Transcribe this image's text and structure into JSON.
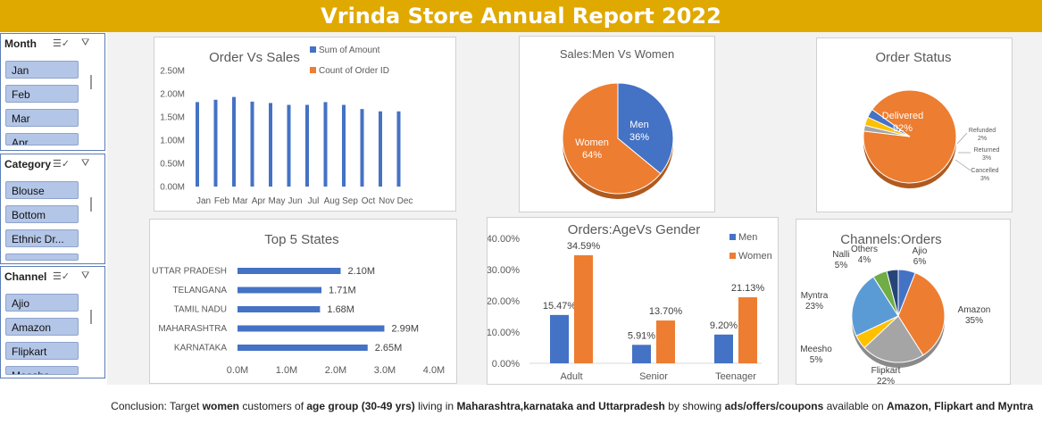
{
  "title": "Vrinda Store Annual Report 2022",
  "slicers": {
    "month": {
      "title": "Month",
      "items": [
        "Jan",
        "Feb",
        "Mar",
        "Apr"
      ]
    },
    "category": {
      "title": "Category",
      "items": [
        "Blouse",
        "Bottom",
        "Ethnic Dr..."
      ]
    },
    "channel": {
      "title": "Channel",
      "items": [
        "Ajio",
        "Amazon",
        "Flipkart",
        "Meesho"
      ]
    }
  },
  "colors": {
    "banner": "#E0A900",
    "blue": "#4472C4",
    "orange": "#ED7D31",
    "gray": "#A5A5A5",
    "yellow": "#FFC000",
    "lightblue": "#5B9BD5",
    "green": "#70AD47",
    "navy": "#264478"
  },
  "conclusion": {
    "p1": "Conclusion: Target ",
    "b1": "women",
    "p2": " customers of ",
    "b2": "age group (30-49 yrs)",
    "p3": " living in ",
    "b3": "Maharashtra,karnataka and Uttarpradesh",
    "p4": " by showing ",
    "b4": "ads/offers/coupons",
    "p5": " available on ",
    "b5": "Amazon, Flipkart and Myntra"
  },
  "chart_data": [
    {
      "id": "order-vs-sales",
      "type": "bar",
      "title": "Order Vs Sales",
      "categories": [
        "Jan",
        "Feb",
        "Mar",
        "Apr",
        "May",
        "Jun",
        "Jul",
        "Aug",
        "Sep",
        "Oct",
        "Nov",
        "Dec"
      ],
      "series": [
        {
          "name": "Sum of Amount",
          "values": [
            1.82,
            1.87,
            1.93,
            1.83,
            1.8,
            1.76,
            1.76,
            1.82,
            1.76,
            1.67,
            1.62,
            1.62
          ]
        },
        {
          "name": "Count of Order ID",
          "values": [
            0,
            0,
            0,
            0,
            0,
            0,
            0,
            0,
            0,
            0,
            0,
            0
          ]
        }
      ],
      "yticks": [
        "0.00M",
        "0.50M",
        "1.00M",
        "1.50M",
        "2.00M",
        "2.50M"
      ],
      "ylim": [
        0,
        2.5
      ],
      "legend": "top-right",
      "grid": false
    },
    {
      "id": "sales-men-women",
      "type": "pie",
      "title": "Sales:Men Vs Women",
      "labels": [
        "Men",
        "Women"
      ],
      "values": [
        36,
        64
      ],
      "value_labels": [
        "36%",
        "64%"
      ]
    },
    {
      "id": "order-status",
      "type": "pie",
      "title": "Order Status",
      "labels": [
        "Delivered",
        "Refunded",
        "Returned",
        "Cancelled"
      ],
      "values": [
        92,
        2,
        3,
        3
      ],
      "value_labels": [
        "92%",
        "2%",
        "3%",
        "3%"
      ]
    },
    {
      "id": "top-5-states",
      "type": "bar",
      "orientation": "horizontal",
      "title": "Top 5 States",
      "categories": [
        "UTTAR PRADESH",
        "TELANGANA",
        "TAMIL NADU",
        "MAHARASHTRA",
        "KARNATAKA"
      ],
      "values": [
        2.1,
        1.71,
        1.68,
        2.99,
        2.65
      ],
      "value_labels": [
        "2.10M",
        "1.71M",
        "1.68M",
        "2.99M",
        "2.65M"
      ],
      "xticks": [
        "0.0M",
        "1.0M",
        "2.0M",
        "3.0M",
        "4.0M"
      ],
      "xlim": [
        0,
        4
      ],
      "grid": false
    },
    {
      "id": "orders-age-gender",
      "type": "bar",
      "title": "Orders:AgeVs Gender",
      "categories": [
        "Adult",
        "Senior",
        "Teenager"
      ],
      "series": [
        {
          "name": "Men",
          "values": [
            15.47,
            5.91,
            9.2
          ],
          "labels": [
            "15.47%",
            "5.91%",
            "9.20%"
          ]
        },
        {
          "name": "Women",
          "values": [
            34.59,
            13.7,
            21.13
          ],
          "labels": [
            "34.59%",
            "13.70%",
            "21.13%"
          ]
        }
      ],
      "yticks": [
        "0.00%",
        "10.00%",
        "20.00%",
        "30.00%",
        "40.00%"
      ],
      "ylim": [
        0,
        40
      ],
      "legend": "top-right",
      "grid": false
    },
    {
      "id": "channels-orders",
      "type": "pie",
      "title": "Channels:Orders",
      "labels": [
        "Ajio",
        "Amazon",
        "Flipkart",
        "Meesho",
        "Myntra",
        "Nalli",
        "Others"
      ],
      "values": [
        6,
        35,
        22,
        5,
        23,
        5,
        4
      ],
      "value_labels": [
        "6%",
        "35%",
        "22%",
        "5%",
        "23%",
        "5%",
        "4%"
      ]
    }
  ]
}
